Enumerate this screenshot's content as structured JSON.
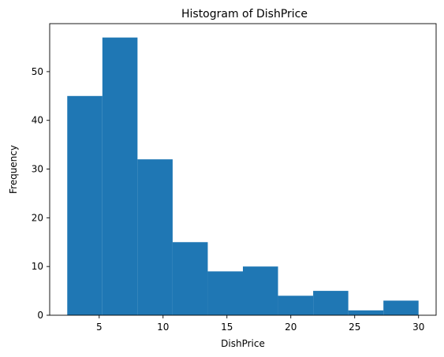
{
  "chart_data": {
    "type": "bar",
    "title": "Histogram of DishPrice",
    "xlabel": "DishPrice",
    "ylabel": "Frequency",
    "bins": [
      {
        "start": 2.5,
        "end": 5.25,
        "count": 45
      },
      {
        "start": 5.25,
        "end": 8.0,
        "count": 57
      },
      {
        "start": 8.0,
        "end": 10.75,
        "count": 32
      },
      {
        "start": 10.75,
        "end": 13.5,
        "count": 15
      },
      {
        "start": 13.5,
        "end": 16.25,
        "count": 9
      },
      {
        "start": 16.25,
        "end": 19.0,
        "count": 10
      },
      {
        "start": 19.0,
        "end": 21.75,
        "count": 4
      },
      {
        "start": 21.75,
        "end": 24.5,
        "count": 5
      },
      {
        "start": 24.5,
        "end": 27.25,
        "count": 1
      },
      {
        "start": 27.25,
        "end": 30.0,
        "count": 3
      }
    ],
    "xlim": [
      1.125,
      31.375
    ],
    "ylim": [
      0,
      59.85
    ],
    "xticks": [
      5,
      10,
      15,
      20,
      25,
      30
    ],
    "yticks": [
      0,
      10,
      20,
      30,
      40,
      50
    ],
    "bar_color": "#1f77b4",
    "grid": false
  }
}
